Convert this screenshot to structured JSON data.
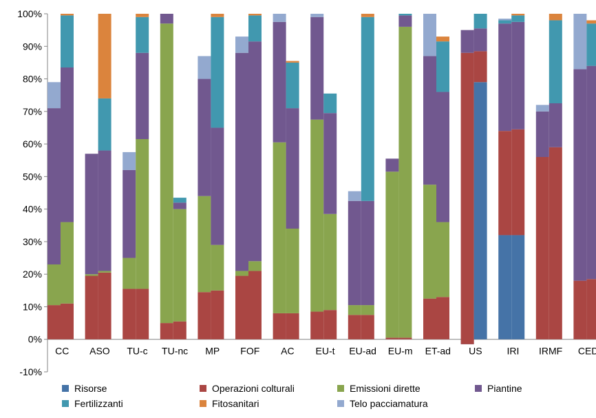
{
  "chart_data": {
    "type": "bar",
    "stacked": true,
    "title": "",
    "xlabel": "",
    "ylabel": "",
    "ylim": [
      -10,
      100
    ],
    "y_ticks": [
      "100%",
      "90%",
      "80%",
      "70%",
      "60%",
      "50%",
      "40%",
      "30%",
      "20%",
      "10%",
      "0%",
      "-10%"
    ],
    "y_tick_values": [
      100,
      90,
      80,
      70,
      60,
      50,
      40,
      30,
      20,
      10,
      0,
      -10
    ],
    "grid": false,
    "legend_position": "bottom",
    "categories": [
      "CC",
      "ASO",
      "TU-c",
      "TU-nc",
      "MP",
      "FOF",
      "AC",
      "EU-t",
      "EU-ad",
      "EU-m",
      "ET-ad",
      "US",
      "IRI",
      "IRMF",
      "CED"
    ],
    "bars_per_category": 2,
    "series": [
      {
        "name": "Risorse",
        "color": "#4573a7",
        "values": [
          [
            0,
            0
          ],
          [
            0,
            0
          ],
          [
            0,
            0
          ],
          [
            0,
            0
          ],
          [
            0,
            0
          ],
          [
            0,
            0
          ],
          [
            0,
            0
          ],
          [
            0,
            0
          ],
          [
            0,
            0
          ],
          [
            0,
            0
          ],
          [
            0,
            0
          ],
          [
            -1.5,
            79.0
          ],
          [
            32.0,
            32.0
          ],
          [
            0,
            0
          ],
          [
            0,
            0
          ]
        ]
      },
      {
        "name": "Operazioni colturali",
        "color": "#aa4643",
        "values": [
          [
            10.5,
            11.0
          ],
          [
            19.5,
            20.5
          ],
          [
            15.5,
            15.5
          ],
          [
            5.0,
            5.5
          ],
          [
            14.5,
            15.0
          ],
          [
            19.5,
            21.0
          ],
          [
            8.0,
            8.0
          ],
          [
            8.5,
            9.0
          ],
          [
            7.5,
            7.5
          ],
          [
            0.5,
            0.5
          ],
          [
            12.5,
            13.0
          ],
          [
            88.0,
            88.5
          ],
          [
            64.0,
            64.5
          ],
          [
            56.0,
            59.0
          ],
          [
            18.0,
            18.5
          ]
        ]
      },
      {
        "name": "Emissioni dirette",
        "color": "#89a54e",
        "values": [
          [
            23.0,
            36.0
          ],
          [
            20.0,
            21.0
          ],
          [
            25.0,
            61.5
          ],
          [
            97.0,
            40.0
          ],
          [
            44.0,
            29.0
          ],
          [
            21.0,
            24.0
          ],
          [
            60.5,
            34.0
          ],
          [
            67.5,
            38.5
          ],
          [
            10.5,
            10.5
          ],
          [
            51.5,
            96.0
          ],
          [
            47.5,
            36.0
          ],
          [
            88.0,
            88.5
          ],
          [
            64.0,
            64.5
          ],
          [
            56.0,
            59.0
          ],
          [
            18.0,
            18.5
          ]
        ]
      },
      {
        "name": "Piantine",
        "color": "#71588f",
        "values": [
          [
            71.0,
            83.5
          ],
          [
            57.0,
            58.0
          ],
          [
            52.0,
            88.0
          ],
          [
            100.0,
            42.0
          ],
          [
            80.0,
            65.0
          ],
          [
            88.0,
            91.5
          ],
          [
            97.5,
            71.0
          ],
          [
            99.0,
            69.5
          ],
          [
            42.5,
            42.5
          ],
          [
            55.5,
            99.5
          ],
          [
            87.0,
            76.0
          ],
          [
            95.0,
            95.5
          ],
          [
            97.0,
            97.5
          ],
          [
            70.0,
            72.5
          ],
          [
            83.0,
            84.0
          ]
        ]
      },
      {
        "name": "Fertilizzanti",
        "color": "#4198af",
        "values": [
          [
            71.0,
            99.5
          ],
          [
            57.0,
            74.0
          ],
          [
            52.0,
            99.0
          ],
          [
            100.0,
            43.5
          ],
          [
            80.0,
            99.0
          ],
          [
            88.0,
            99.5
          ],
          [
            97.5,
            85.0
          ],
          [
            99.0,
            75.5
          ],
          [
            42.5,
            99.0
          ],
          [
            55.5,
            100.0
          ],
          [
            87.0,
            91.5
          ],
          [
            95.0,
            100.0
          ],
          [
            98.0,
            99.5
          ],
          [
            70.0,
            98.0
          ],
          [
            83.0,
            97.0
          ]
        ]
      },
      {
        "name": "Fitosanitari",
        "color": "#db843d",
        "values": [
          [
            71.0,
            100.0
          ],
          [
            57.0,
            100.0
          ],
          [
            52.0,
            100.0
          ],
          [
            100.0,
            43.5
          ],
          [
            80.0,
            100.0
          ],
          [
            88.0,
            100.0
          ],
          [
            97.5,
            85.5
          ],
          [
            99.0,
            75.5
          ],
          [
            42.5,
            100.0
          ],
          [
            55.5,
            100.0
          ],
          [
            87.0,
            93.0
          ],
          [
            95.0,
            100.0
          ],
          [
            98.0,
            100.0
          ],
          [
            70.0,
            100.0
          ],
          [
            83.0,
            98.0
          ]
        ]
      },
      {
        "name": "Telo pacciamatura",
        "color": "#93a9cf",
        "values": [
          [
            79.0,
            100.0
          ],
          [
            57.0,
            100.0
          ],
          [
            57.5,
            100.0
          ],
          [
            100.0,
            43.5
          ],
          [
            87.0,
            100.0
          ],
          [
            93.0,
            100.0
          ],
          [
            100.0,
            85.5
          ],
          [
            100.0,
            75.5
          ],
          [
            45.5,
            100.0
          ],
          [
            55.5,
            100.0
          ],
          [
            100.0,
            93.0
          ],
          [
            95.0,
            100.0
          ],
          [
            98.5,
            100.0
          ],
          [
            72.0,
            100.0
          ],
          [
            100.0,
            98.0
          ]
        ]
      }
    ]
  }
}
